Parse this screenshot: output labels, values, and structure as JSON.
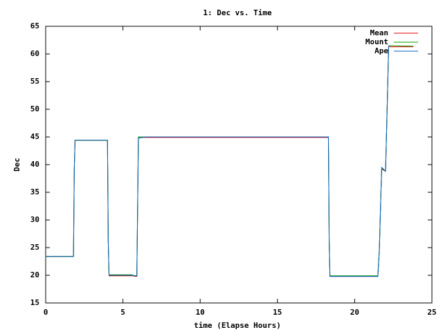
{
  "chart_data": {
    "type": "line",
    "title": "1: Dec vs. Time",
    "x_label": "time (Elapse Hours)",
    "y_label": "Dec",
    "xlim": [
      0,
      25
    ],
    "xticks": [
      0,
      5,
      10,
      15,
      20,
      25
    ],
    "ylim": [
      15,
      65
    ],
    "yticks": [
      15,
      20,
      25,
      30,
      35,
      40,
      45,
      50,
      55,
      60,
      65
    ],
    "legend": "top-right",
    "series": [
      {
        "name": "Mean",
        "color": "#e00000",
        "x": [
          0,
          1.8,
          1.85,
          1.9,
          4.0,
          4.05,
          4.1,
          5.7,
          5.75,
          5.9,
          5.95,
          6.0,
          18.3,
          18.35,
          18.4,
          21.5,
          21.6,
          21.7,
          21.75,
          22.0,
          22.1,
          22.2,
          23.8
        ],
        "values": [
          23.4,
          23.4,
          39,
          44.4,
          44.4,
          26,
          19.9,
          19.9,
          19.8,
          19.8,
          32,
          44.9,
          44.9,
          26,
          19.8,
          19.8,
          24.8,
          35,
          39.2,
          38.8,
          50,
          61.3,
          61.3
        ]
      },
      {
        "name": "Mount",
        "color": "#00a000",
        "x": [
          0,
          1.8,
          1.85,
          1.9,
          4.0,
          4.05,
          4.1,
          5.6,
          5.65,
          5.9,
          5.95,
          6.0,
          18.3,
          18.35,
          18.4,
          21.5,
          21.6,
          21.7,
          21.75,
          22.0,
          22.1,
          22.2,
          23.8
        ],
        "values": [
          23.4,
          23.4,
          39,
          44.4,
          44.4,
          26,
          20.1,
          20.1,
          19.9,
          19.9,
          32,
          45,
          45,
          26,
          19.9,
          19.9,
          24.8,
          35,
          39.3,
          38.9,
          50,
          61.5,
          61.4
        ]
      },
      {
        "name": "Ape",
        "color": "#0060c0",
        "x": [
          0,
          1.8,
          1.85,
          1.9,
          4.0,
          4.05,
          4.1,
          5.7,
          5.75,
          5.9,
          5.95,
          6.0,
          6.5,
          12.8,
          18.3,
          18.35,
          18.4,
          21.5,
          21.6,
          21.7,
          21.75,
          22.0,
          22.1,
          22.2
        ],
        "values": [
          23.4,
          23.4,
          39,
          44.4,
          44.4,
          26,
          20,
          20,
          19.9,
          19.9,
          32.3,
          44.8,
          45,
          45,
          45,
          26,
          19.8,
          19.8,
          24.8,
          35,
          39.5,
          38.8,
          50,
          61.5
        ]
      }
    ]
  }
}
